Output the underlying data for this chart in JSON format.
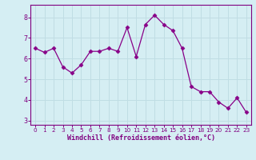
{
  "x": [
    0,
    1,
    2,
    3,
    4,
    5,
    6,
    7,
    8,
    9,
    10,
    11,
    12,
    13,
    14,
    15,
    16,
    17,
    18,
    19,
    20,
    21,
    22,
    23
  ],
  "y": [
    6.5,
    6.3,
    6.5,
    5.6,
    5.3,
    5.7,
    6.35,
    6.35,
    6.5,
    6.35,
    7.5,
    6.1,
    7.65,
    8.1,
    7.65,
    7.35,
    6.5,
    4.65,
    4.4,
    4.4,
    3.9,
    3.6,
    4.1,
    3.4
  ],
  "line_color": "#880088",
  "marker": "D",
  "marker_size": 2.5,
  "xlabel": "Windchill (Refroidissement éolien,°C)",
  "xlim": [
    -0.5,
    23.5
  ],
  "ylim": [
    2.8,
    8.6
  ],
  "yticks": [
    3,
    4,
    5,
    6,
    7,
    8
  ],
  "xticks": [
    0,
    1,
    2,
    3,
    4,
    5,
    6,
    7,
    8,
    9,
    10,
    11,
    12,
    13,
    14,
    15,
    16,
    17,
    18,
    19,
    20,
    21,
    22,
    23
  ],
  "bg_color": "#d5eef3",
  "grid_color": "#c0dde4",
  "axis_color": "#800080",
  "tick_color": "#800080",
  "label_color": "#800080",
  "font_family": "monospace",
  "xlabel_fontsize": 6.0,
  "tick_fontsize_x": 5.2,
  "tick_fontsize_y": 6.0
}
